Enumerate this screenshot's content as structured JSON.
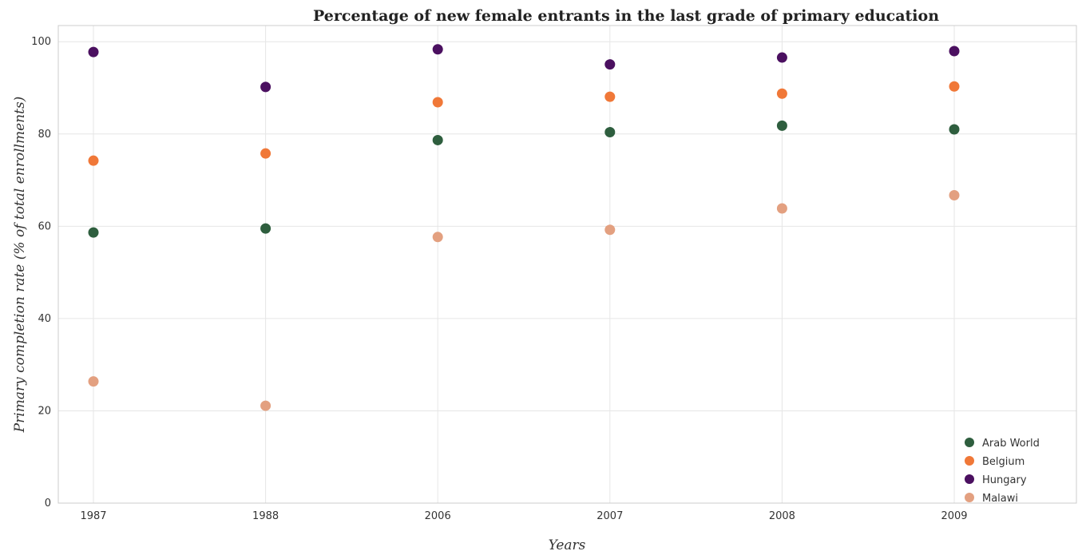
{
  "chart_data": {
    "type": "scatter",
    "title": "Percentage of new female entrants in the last grade of primary education",
    "xlabel": "Years",
    "ylabel": "Primary completion rate (% of total enrollments)",
    "categories": [
      "1987",
      "1988",
      "2006",
      "2007",
      "2008",
      "2009"
    ],
    "yticks": [
      0,
      20,
      40,
      60,
      80,
      100
    ],
    "ylim": [
      0,
      103.5
    ],
    "grid": true,
    "legend_position": "bottom-right",
    "series": [
      {
        "name": "Arab World",
        "color": "#2e5e3e",
        "values": [
          58.65,
          59.52,
          78.67,
          80.39,
          81.8,
          81.0
        ]
      },
      {
        "name": "Belgium",
        "color": "#f07838",
        "values": [
          74.22,
          75.78,
          86.89,
          88.08,
          88.75,
          90.3
        ]
      },
      {
        "name": "Hungary",
        "color": "#4b1060",
        "values": [
          97.77,
          90.2,
          98.35,
          95.08,
          96.57,
          97.96
        ]
      },
      {
        "name": "Malawi",
        "color": "#e3a080",
        "values": [
          26.37,
          21.1,
          57.67,
          59.23,
          63.86,
          66.72
        ]
      }
    ]
  }
}
